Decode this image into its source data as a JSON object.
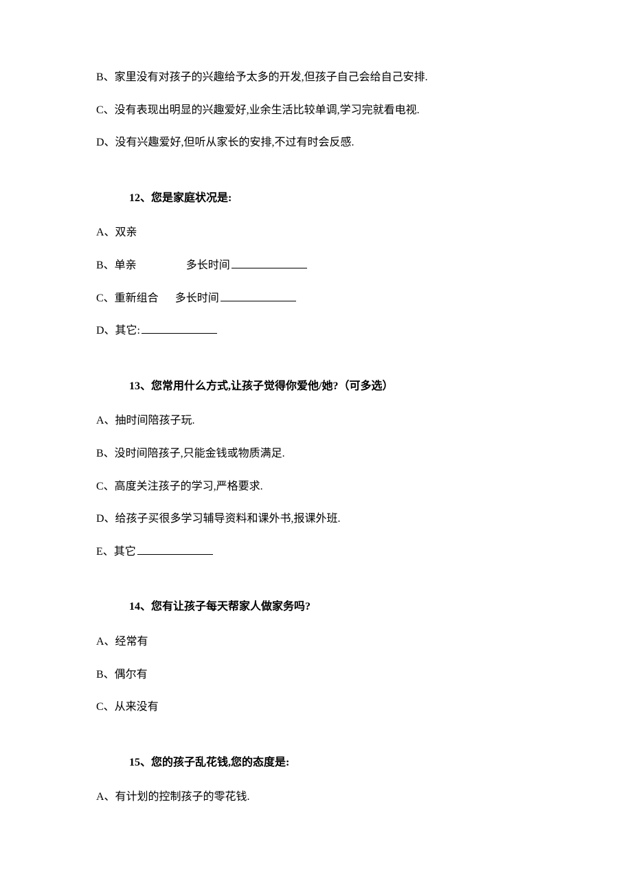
{
  "q11_continued": {
    "options": [
      "B、家里没有对孩子的兴趣给予太多的开发,但孩子自己会给自己安排.",
      "C、没有表现出明显的兴趣爱好,业余生活比较单调,学习完就看电视.",
      "D、没有兴趣爱好,但听从家长的安排,不过有时会反感."
    ]
  },
  "q12": {
    "title": "12、您是家庭状况是:",
    "options": {
      "a": "A、双亲",
      "b_prefix": "B、单亲",
      "b_label": "多长时间",
      "c_prefix": "C、重新组合",
      "c_label": "多长时间",
      "d_prefix": "D、其它:"
    }
  },
  "q13": {
    "title": "13、您常用什么方式,让孩子觉得你爱他/她?（可多选）",
    "options": {
      "a": "A、抽时间陪孩子玩.",
      "b": "B、没时间陪孩子,只能金钱或物质满足.",
      "c": "C、高度关注孩子的学习,严格要求.",
      "d": "D、给孩子买很多学习辅导资料和课外书,报课外班.",
      "e_prefix": "E、其它"
    }
  },
  "q14": {
    "title": "14、您有让孩子每天帮家人做家务吗?",
    "options": {
      "a": "A、经常有",
      "b": "B、偶尔有",
      "c": "C、从来没有"
    }
  },
  "q15": {
    "title": "15、您的孩子乱花钱,您的态度是:",
    "options": {
      "a": "A、有计划的控制孩子的零花钱."
    }
  }
}
